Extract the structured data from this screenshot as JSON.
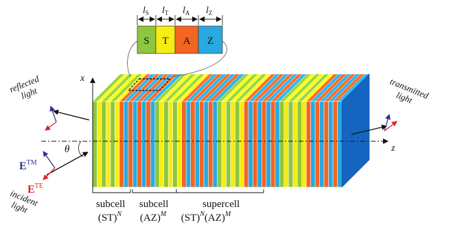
{
  "cell_labels": {
    "s_letter": "S",
    "t_letter": "T",
    "a_letter": "A",
    "z_letter": "Z",
    "ls": "l",
    "ls_sub": "S",
    "lt": "l",
    "lt_sub": "T",
    "la": "l",
    "la_sub": "A",
    "lz": "l",
    "lz_sub": "Z"
  },
  "axes": {
    "x": "x",
    "z": "z",
    "theta": "θ"
  },
  "light_labels": {
    "reflected_1": "reflected",
    "reflected_2": "light",
    "transmitted_1": "transmitted",
    "transmitted_2": "light",
    "incident_1": "incident",
    "incident_2": "light"
  },
  "fields": {
    "etm_main": "E",
    "etm_sup": "TM",
    "ete_main": "E",
    "ete_sup": "TE"
  },
  "brace_labels": {
    "subcell1_line1": "subcell",
    "subcell1_line2_base": "(ST)",
    "subcell1_line2_sup": "N",
    "subcell2_line1": "subcell",
    "subcell2_line2_base": "(AZ)",
    "subcell2_line2_sup": "M",
    "supercell_line1": "supercell",
    "supercell_line2_a": "(ST)",
    "supercell_line2_asup": "N",
    "supercell_line2_b": "(AZ)",
    "supercell_line2_bsup": "M"
  },
  "colors": {
    "S": "#8dc63f",
    "T": "#f7ec13",
    "A": "#f26522",
    "Z": "#29a9e0",
    "end_face": "#1565c0",
    "tm_vector": "#2e3192",
    "te_vector": "#d7262b"
  },
  "layer_sequence": [
    "S",
    "T",
    "S",
    "T",
    "S",
    "T",
    "A",
    "Z",
    "A",
    "Z",
    "A",
    "Z",
    "A",
    "Z",
    "S",
    "T",
    "S",
    "T",
    "S",
    "T",
    "A",
    "Z",
    "A",
    "Z",
    "A",
    "Z",
    "A",
    "Z",
    "S",
    "T",
    "S",
    "T",
    "S",
    "T",
    "A",
    "Z",
    "A",
    "Z",
    "A",
    "Z",
    "A",
    "Z",
    "S",
    "T",
    "S",
    "T",
    "S",
    "T",
    "A",
    "Z",
    "A",
    "Z",
    "A",
    "Z",
    "A",
    "Z"
  ]
}
